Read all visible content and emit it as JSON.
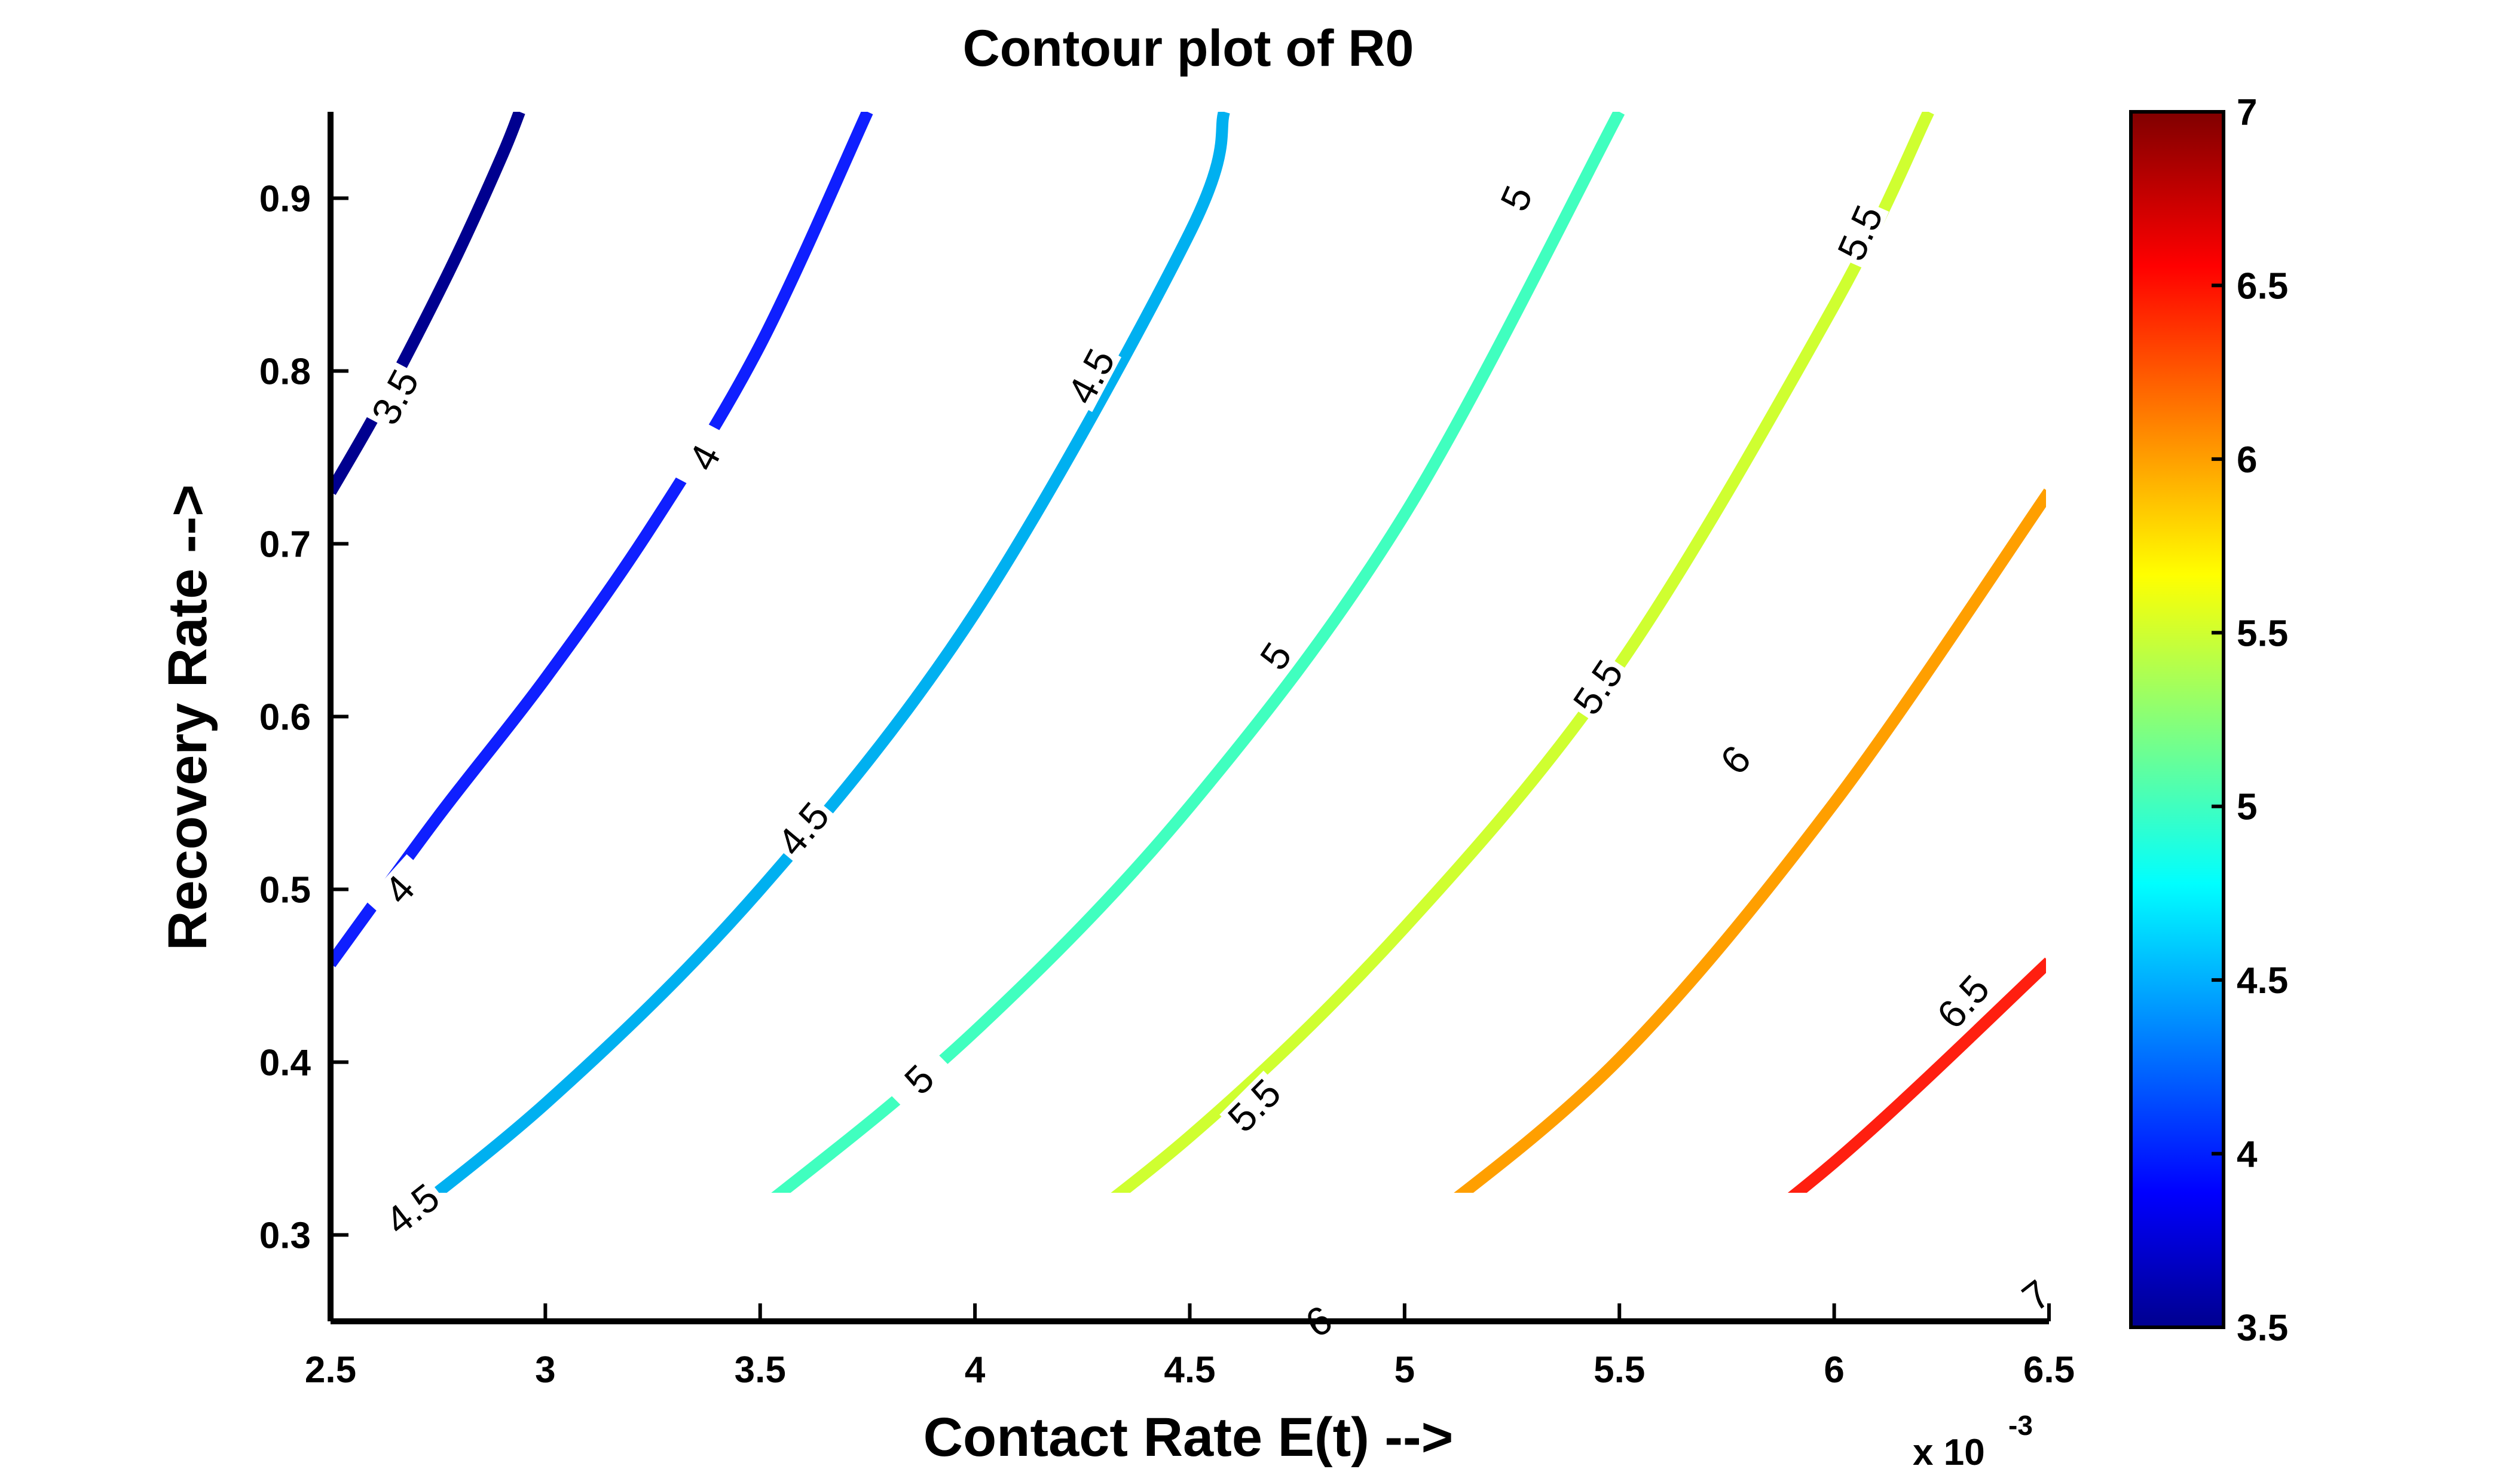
{
  "chart_data": {
    "type": "contour",
    "title": "Contour plot of R0",
    "xlabel": "Contact Rate E(t) -->",
    "ylabel": "Recovery Rate -->",
    "x_multiplier_label": "x 10",
    "x_multiplier_exponent": "-3",
    "xlim": [
      2.5,
      6.5
    ],
    "ylim": [
      0.25,
      0.95
    ],
    "xticks": [
      2.5,
      3,
      3.5,
      4,
      4.5,
      5,
      5.5,
      6,
      6.5
    ],
    "xtick_labels": [
      "2.5",
      "3",
      "3.5",
      "4",
      "4.5",
      "5",
      "5.5",
      "6",
      "6.5"
    ],
    "yticks": [
      0.3,
      0.4,
      0.5,
      0.6,
      0.7,
      0.8,
      0.9
    ],
    "ytick_labels": [
      "0.3",
      "0.4",
      "0.5",
      "0.6",
      "0.7",
      "0.8",
      "0.9"
    ],
    "colorbar": {
      "range": [
        3.5,
        7
      ],
      "ticks": [
        3.5,
        4,
        4.5,
        5,
        5.5,
        6,
        6.5,
        7
      ],
      "tick_labels": [
        "3.5",
        "4",
        "4.5",
        "5",
        "5.5",
        "6",
        "6.5",
        "7"
      ],
      "colormap": "jet"
    },
    "contours": [
      {
        "level": "3.5",
        "color": "#00008f",
        "points": [
          [
            2.5,
            0.73
          ],
          [
            2.6,
            0.773
          ],
          [
            2.7,
            0.82
          ],
          [
            2.8,
            0.87
          ],
          [
            2.9,
            0.925
          ],
          [
            2.94,
            0.95
          ]
        ],
        "labels": [
          [
            2.65,
            0.785,
            -62
          ]
        ]
      },
      {
        "level": "4",
        "color": "#0f1fff",
        "points": [
          [
            2.5,
            0.457
          ],
          [
            2.75,
            0.542
          ],
          [
            3.0,
            0.622
          ],
          [
            3.25,
            0.711
          ],
          [
            3.5,
            0.815
          ],
          [
            3.75,
            0.95
          ]
        ],
        "labels": [
          [
            2.66,
            0.5,
            -48
          ],
          [
            3.37,
            0.75,
            -62
          ]
        ]
      },
      {
        "level": "4.5",
        "color": "#00b0f0",
        "points": [
          [
            2.5,
            0.277
          ],
          [
            3.0,
            0.376
          ],
          [
            3.5,
            0.5
          ],
          [
            4.0,
            0.66
          ],
          [
            4.5,
            0.88
          ],
          [
            4.58,
            0.95
          ]
        ],
        "labels": [
          [
            2.69,
            0.315,
            -38
          ],
          [
            3.6,
            0.535,
            -50
          ],
          [
            4.27,
            0.797,
            -62
          ]
        ]
      },
      {
        "level": "5",
        "color": "#40ffbf",
        "points": [
          [
            3.14,
            0.25
          ],
          [
            3.5,
            0.315
          ],
          [
            4.0,
            0.418
          ],
          [
            4.5,
            0.548
          ],
          [
            5.0,
            0.717
          ],
          [
            5.5,
            0.95
          ]
        ],
        "labels": [
          [
            3.87,
            0.39,
            -45
          ],
          [
            4.7,
            0.635,
            -56
          ],
          [
            5.26,
            0.9,
            -66
          ]
        ]
      },
      {
        "level": "5.5",
        "color": "#cfff30",
        "points": [
          [
            3.94,
            0.25
          ],
          [
            4.5,
            0.357
          ],
          [
            5.0,
            0.478
          ],
          [
            5.5,
            0.63
          ],
          [
            6.0,
            0.838
          ],
          [
            6.22,
            0.95
          ]
        ],
        "labels": [
          [
            4.65,
            0.375,
            -45
          ],
          [
            5.45,
            0.617,
            -56
          ],
          [
            6.06,
            0.88,
            -66
          ]
        ]
      },
      {
        "level": "6",
        "color": "#ff9f00",
        "points": [
          [
            4.72,
            0.25
          ],
          [
            5.0,
            0.298
          ],
          [
            5.5,
            0.402
          ],
          [
            6.0,
            0.55
          ],
          [
            6.5,
            0.73
          ]
        ],
        "labels": [
          [
            4.8,
            0.25,
            -30
          ],
          [
            5.77,
            0.575,
            -48
          ]
        ]
      },
      {
        "level": "6.5",
        "color": "#ff1f10",
        "points": [
          [
            5.52,
            0.25
          ],
          [
            6.0,
            0.342
          ],
          [
            6.5,
            0.458
          ]
        ],
        "labels": [
          [
            6.3,
            0.435,
            -48
          ]
        ]
      },
      {
        "level": "7",
        "color": "#8f0000",
        "points": [
          [
            6.32,
            0.25
          ],
          [
            6.5,
            0.28
          ]
        ],
        "labels": [
          [
            6.47,
            0.265,
            -38
          ]
        ]
      }
    ]
  }
}
